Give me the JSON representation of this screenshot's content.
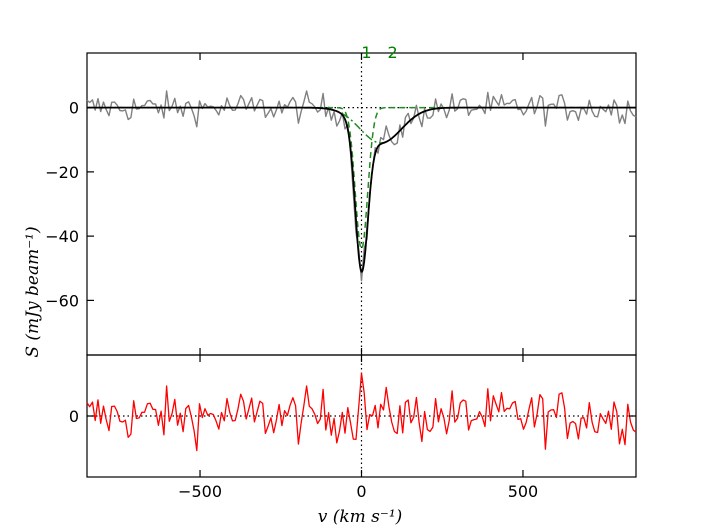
{
  "chart_data": {
    "type": "line",
    "figure": "HI absorption spectrum with two-component Gaussian fit and residuals",
    "colors": {
      "spectrum": "#808080",
      "fit": "#000000",
      "components": "#228b22",
      "residual": "#ff0000",
      "component_labels": "#008000"
    },
    "main_panel": {
      "ylabel": "S (mJy beam⁻¹)",
      "xlim": [
        -850,
        850
      ],
      "ylim": [
        -77,
        17
      ],
      "yticks": [
        0,
        -20,
        -40,
        -60
      ],
      "ytick_labels": [
        "0",
        "−20",
        "−40",
        "−60"
      ],
      "series": [
        {
          "name": "Observed spectrum",
          "style": "grey step line",
          "description": "noisy spectrum around 0 with rms about 4 mJy, deep absorption centered near 0 km/s"
        },
        {
          "name": "Total fit",
          "style": "solid black"
        },
        {
          "name": "Component 1",
          "style": "green dashed",
          "center": 0,
          "depth": -44,
          "fwhm": 45
        },
        {
          "name": "Component 2",
          "style": "green dash-dot",
          "center": 60,
          "depth": -11,
          "fwhm": 150
        }
      ],
      "components": [
        {
          "label": "1",
          "v": 0
        },
        {
          "label": "2",
          "v": 90
        }
      ],
      "reference_lines": {
        "vertical_at_v": 0,
        "horizontal_at_S": 0,
        "style": "dotted black"
      }
    },
    "residual_panel": {
      "ylim": [
        -20,
        20
      ],
      "yticks": [
        0
      ],
      "ytick_labels": [
        "0"
      ],
      "series": [
        {
          "name": "Residuals",
          "style": "solid red",
          "description": "residual noise about ±8 mJy around 0"
        }
      ]
    },
    "x_axis": {
      "xlabel": "v (km s⁻¹)",
      "xticks": [
        -500,
        0,
        500
      ],
      "xtick_labels": [
        "−500",
        "0",
        "500"
      ]
    }
  }
}
